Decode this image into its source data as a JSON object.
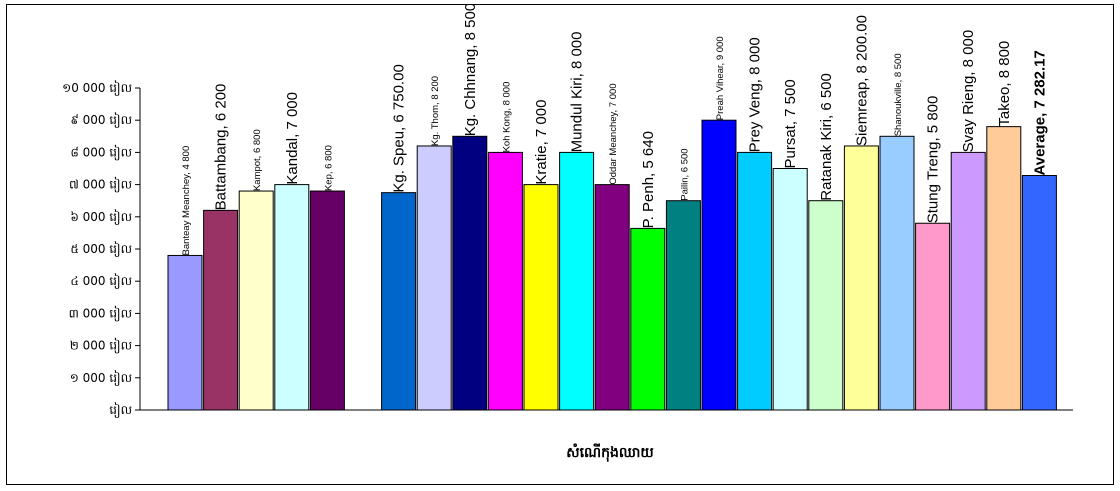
{
  "chart_data": {
    "type": "bar",
    "title": "",
    "xlabel": "សំណើ​កុ​ងឈាយ",
    "ylabel": "",
    "ylim": [
      0,
      10000
    ],
    "ytick_step": 1000,
    "ytick_labels": [
      "រៀល",
      "១ 000 រៀល",
      "២ 000 រៀល",
      "៣ 000 រៀល",
      "៤ 000 រៀល",
      "៥ 000 រៀល",
      "៦ 000 រៀល",
      "៧ 000 រៀល",
      "៨ 000 រៀល",
      "៩ 000 រៀល",
      "១0 000 រៀល"
    ],
    "grid": false,
    "legend": "none",
    "bars": [
      {
        "label": "Banteay Meanchey, 4 800",
        "value": 4800,
        "color": "#9999ff",
        "label_size": "small"
      },
      {
        "label": "Battambang, 6 200",
        "value": 6200,
        "color": "#993366",
        "label_size": "large"
      },
      {
        "label": "Kampot, 6 800",
        "value": 6800,
        "color": "#ffffcc",
        "label_size": "small"
      },
      {
        "label": "Kandal, 7 000",
        "value": 7000,
        "color": "#ccffff",
        "label_size": "large"
      },
      {
        "label": "Kep, 6 800",
        "value": 6800,
        "color": "#660066",
        "label_size": "small"
      },
      {
        "label": "Kg. Speu, 6 750.00",
        "value": 6750,
        "color": "#0066cc",
        "label_size": "large",
        "gap_before": true
      },
      {
        "label": "Kg. Thom, 8 200",
        "value": 8200,
        "color": "#ccccff",
        "label_size": "small"
      },
      {
        "label": "Kg. Chhnang, 8 500",
        "value": 8500,
        "color": "#000080",
        "label_size": "large"
      },
      {
        "label": "Koh Kong, 8 000",
        "value": 8000,
        "color": "#ff00ff",
        "label_size": "small"
      },
      {
        "label": "Kratie, 7 000",
        "value": 7000,
        "color": "#ffff00",
        "label_size": "large"
      },
      {
        "label": "Mundul Kiri, 8 000",
        "value": 8000,
        "color": "#00ffff",
        "label_size": "large"
      },
      {
        "label": "Oddar Meanchey, 7 000",
        "value": 7000,
        "color": "#800080",
        "label_size": "small"
      },
      {
        "label": "P. Penh, 5 640",
        "value": 5640,
        "color": "#00ff00",
        "label_size": "large"
      },
      {
        "label": "Pailin, 6 500",
        "value": 6500,
        "color": "#008080",
        "label_size": "small"
      },
      {
        "label": "Preah Vihear, 9 000",
        "value": 9000,
        "color": "#0000ff",
        "label_size": "small"
      },
      {
        "label": "Prey Veng, 8 000",
        "value": 8000,
        "color": "#00ccff",
        "label_size": "large"
      },
      {
        "label": "Pursat, 7 500",
        "value": 7500,
        "color": "#ccffff",
        "label_size": "large"
      },
      {
        "label": "Ratanak Kiri, 6 500",
        "value": 6500,
        "color": "#ccffcc",
        "label_size": "large"
      },
      {
        "label": "Siemreap, 8 200.00",
        "value": 8200,
        "color": "#ffff99",
        "label_size": "large"
      },
      {
        "label": "Shanoukville, 8 500",
        "value": 8500,
        "color": "#99ccff",
        "label_size": "small"
      },
      {
        "label": "Stung Treng, 5 800",
        "value": 5800,
        "color": "#ff99cc",
        "label_size": "large"
      },
      {
        "label": "Svay Rieng, 8 000",
        "value": 8000,
        "color": "#cc99ff",
        "label_size": "large"
      },
      {
        "label": "Takeo, 8 800",
        "value": 8800,
        "color": "#ffcc99",
        "label_size": "large"
      },
      {
        "label": "Average, 7 282.17",
        "value": 7282.17,
        "color": "#3366ff",
        "label_size": "large",
        "bold": true
      }
    ]
  }
}
